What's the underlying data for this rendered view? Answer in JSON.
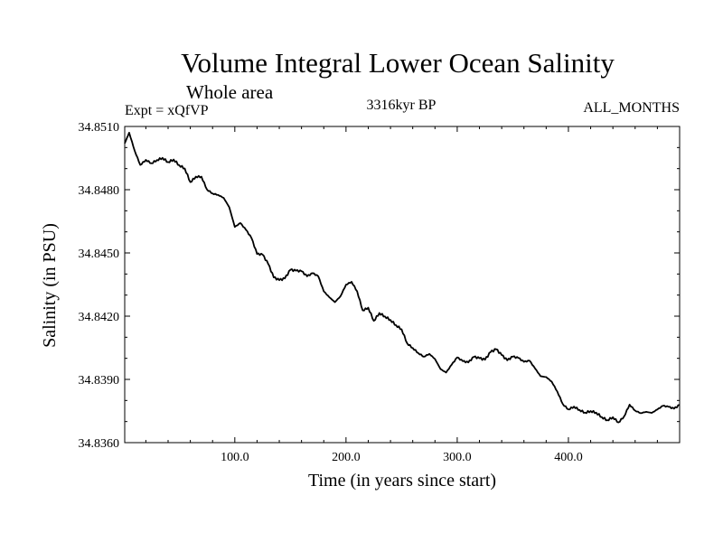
{
  "chart_data": {
    "type": "line",
    "title": "Volume Integral Lower Ocean Salinity",
    "subtitle": "Whole area",
    "experiment_label": "Expt = xQfVP",
    "period_label": "3316kyr BP",
    "months_label": "ALL_MONTHS",
    "xlabel": "Time (in years since start)",
    "ylabel": "Salinity (in PSU)",
    "xlim": [
      1,
      500
    ],
    "ylim": [
      34.836,
      34.851
    ],
    "xticks": [
      100,
      200,
      300,
      400
    ],
    "xtick_labels": [
      "100.0",
      "200.0",
      "300.0",
      "400.0"
    ],
    "yticks": [
      34.836,
      34.839,
      34.842,
      34.845,
      34.848,
      34.851
    ],
    "ytick_labels": [
      "34.8360",
      "34.8390",
      "34.8420",
      "34.8450",
      "34.8480",
      "34.8510"
    ],
    "grid": false,
    "series": [
      {
        "name": "Salinity",
        "color": "#000000",
        "x": [
          1,
          5,
          10,
          15,
          20,
          25,
          30,
          35,
          40,
          45,
          50,
          55,
          60,
          65,
          70,
          75,
          80,
          85,
          90,
          95,
          100,
          105,
          110,
          115,
          120,
          125,
          130,
          135,
          140,
          145,
          150,
          155,
          160,
          165,
          170,
          175,
          180,
          185,
          190,
          195,
          200,
          205,
          210,
          215,
          220,
          225,
          230,
          235,
          240,
          245,
          250,
          255,
          260,
          265,
          270,
          275,
          280,
          285,
          290,
          295,
          300,
          305,
          310,
          315,
          320,
          325,
          330,
          335,
          340,
          345,
          350,
          355,
          360,
          365,
          370,
          375,
          380,
          385,
          390,
          395,
          400,
          405,
          410,
          415,
          420,
          425,
          430,
          435,
          440,
          445,
          450,
          455,
          460,
          465,
          470,
          475,
          480,
          485,
          490,
          495,
          500
        ],
        "values": [
          34.8502,
          34.8507,
          34.8498,
          34.8492,
          34.8494,
          34.8493,
          34.8494,
          34.8495,
          34.8493,
          34.8494,
          34.8492,
          34.849,
          34.8484,
          34.8486,
          34.8486,
          34.848,
          34.8478,
          34.8478,
          34.8476,
          34.8472,
          34.8462,
          34.8464,
          34.8461,
          34.8457,
          34.845,
          34.8449,
          34.8445,
          34.8438,
          34.8437,
          34.8438,
          34.8442,
          34.8442,
          34.8441,
          34.8439,
          34.844,
          34.8439,
          34.8432,
          34.8429,
          34.8427,
          34.8429,
          34.8435,
          34.8436,
          34.8432,
          34.8423,
          34.8424,
          34.8418,
          34.8421,
          34.842,
          34.8418,
          34.8416,
          34.8414,
          34.8407,
          34.8405,
          34.8402,
          34.8401,
          34.8402,
          34.84,
          34.8395,
          34.8393,
          34.8397,
          34.84,
          34.8399,
          34.8398,
          34.8401,
          34.84,
          34.8399,
          34.8403,
          34.8404,
          34.8402,
          34.8399,
          34.8401,
          34.84,
          34.8398,
          34.8399,
          34.8395,
          34.8392,
          34.8391,
          34.8389,
          34.8384,
          34.8378,
          34.8376,
          34.8377,
          34.8376,
          34.8374,
          34.8375,
          34.8374,
          34.8372,
          34.8371,
          34.8372,
          34.837,
          34.8372,
          34.8378,
          34.8375,
          34.8374,
          34.8375,
          34.8374,
          34.8376,
          34.8377,
          34.8377,
          34.8376,
          34.8378
        ]
      }
    ]
  }
}
